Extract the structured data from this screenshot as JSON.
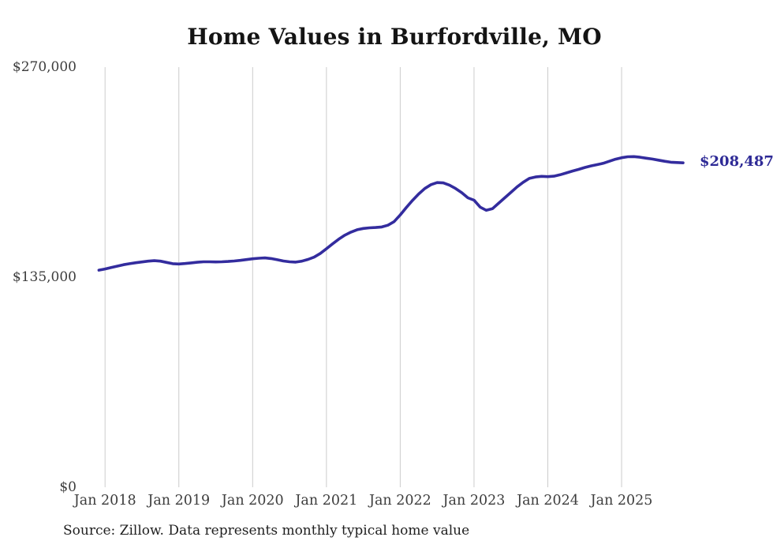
{
  "title": "Home Values in Burfordville, MO",
  "end_label": "$208,487",
  "source_note": "Source: Zillow. Data represents monthly typical home value",
  "colors": {
    "line": "#332c9e",
    "end_label": "#2e2a96",
    "grid": "#cccccc",
    "tick_text": "#3d3d3d",
    "title_text": "#141414"
  },
  "chart_data": {
    "type": "line",
    "title": "Home Values in Burfordville, MO",
    "series_name": "Monthly typical home value",
    "ylim": [
      0,
      270000
    ],
    "grid": "vertical-only",
    "legend": "none",
    "annotation": {
      "text": "$208,487",
      "position": "line-end"
    },
    "y_ticks": [
      {
        "label": "$0",
        "value": 0
      },
      {
        "label": "$135,000",
        "value": 135000
      },
      {
        "label": "$270,000",
        "value": 270000
      }
    ],
    "x_ticks": [
      {
        "label": "Jan 2018",
        "month_index": 1
      },
      {
        "label": "Jan 2019",
        "month_index": 13
      },
      {
        "label": "Jan 2020",
        "month_index": 25
      },
      {
        "label": "Jan 2021",
        "month_index": 37
      },
      {
        "label": "Jan 2022",
        "month_index": 49
      },
      {
        "label": "Jan 2023",
        "month_index": 61
      },
      {
        "label": "Jan 2024",
        "month_index": 73
      },
      {
        "label": "Jan 2025",
        "month_index": 85
      }
    ],
    "start_month": "2017-12",
    "end_month": "2025-11",
    "values": [
      139500,
      140300,
      141200,
      142100,
      143000,
      143700,
      144300,
      144800,
      145300,
      145600,
      145300,
      144500,
      143700,
      143500,
      143800,
      144200,
      144600,
      144900,
      144900,
      144800,
      144900,
      145100,
      145400,
      145800,
      146300,
      146800,
      147200,
      147400,
      147000,
      146200,
      145400,
      144900,
      144700,
      145300,
      146400,
      147900,
      150300,
      153300,
      156400,
      159400,
      162000,
      164000,
      165500,
      166300,
      166700,
      166900,
      167300,
      168400,
      170700,
      175000,
      179800,
      184400,
      188500,
      192000,
      194500,
      195800,
      195600,
      194200,
      192000,
      189300,
      186000,
      184500,
      180000,
      178000,
      179000,
      182500,
      186000,
      189500,
      193000,
      196000,
      198500,
      199400,
      199800,
      199600,
      199900,
      200800,
      202000,
      203200,
      204300,
      205500,
      206500,
      207300,
      208200,
      209500,
      210800,
      211800,
      212400,
      212500,
      212100,
      211500,
      210900,
      210200,
      209500,
      208900,
      208700,
      208487
    ]
  }
}
